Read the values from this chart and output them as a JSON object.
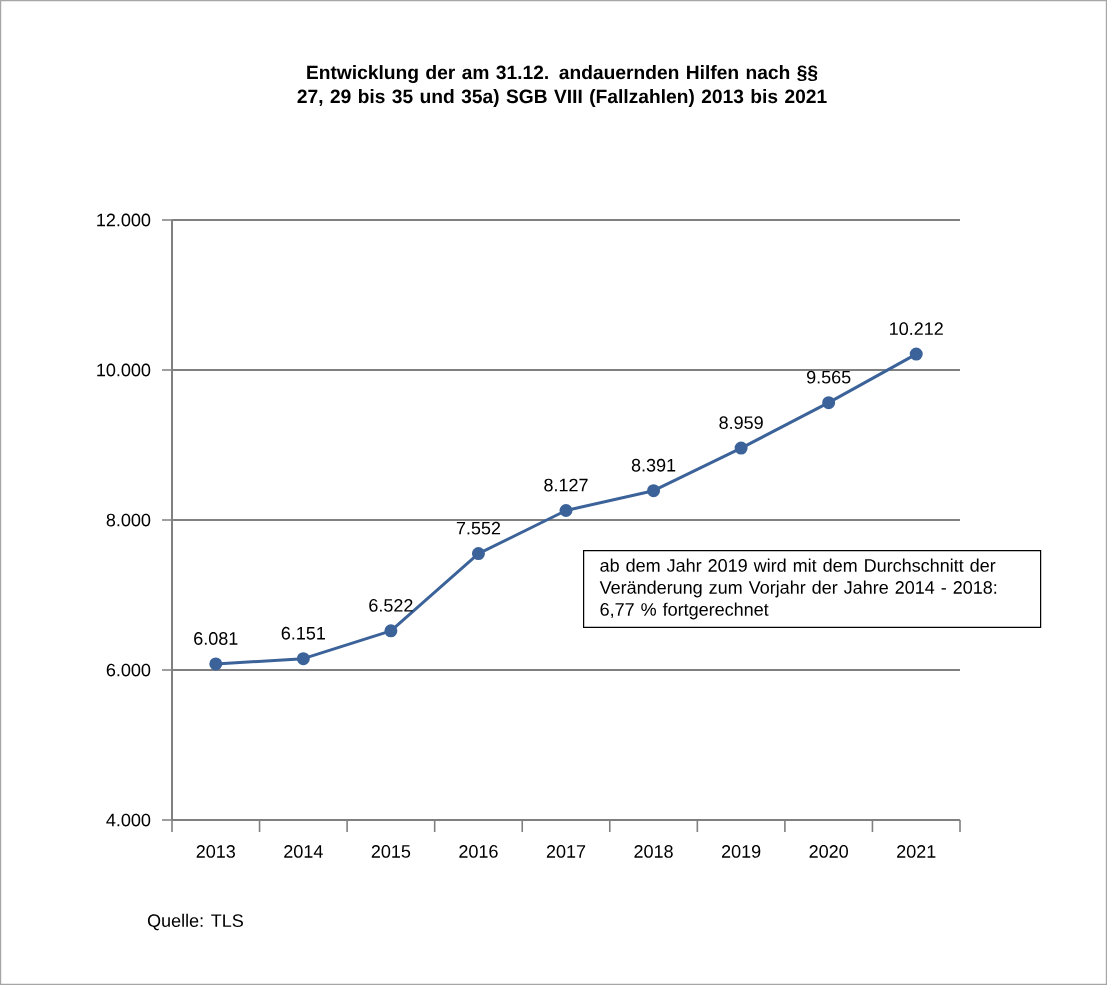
{
  "chart_data": {
    "type": "line",
    "title": "Entwicklung der am 31.12. andauernden Hilfen nach §§ 27, 29 bis 35 und 35a) SGB VIII (Fallzahlen) 2013 bis 2021",
    "categories": [
      "2013",
      "2014",
      "2015",
      "2016",
      "2017",
      "2018",
      "2019",
      "2020",
      "2021"
    ],
    "series": [
      {
        "color": "#3c6399",
        "values": [
          6081,
          6151,
          6522,
          7552,
          8127,
          8391,
          8959,
          9565,
          10212
        ],
        "value_labels": [
          "6.081",
          "6.151",
          "6.522",
          "7.552",
          "8.127",
          "8.391",
          "8.959",
          "9.565",
          "10.212"
        ]
      }
    ],
    "ylim": [
      4000,
      12000
    ],
    "yticks": [
      {
        "value": 4000,
        "label": "4.000"
      },
      {
        "value": 6000,
        "label": "6.000"
      },
      {
        "value": 8000,
        "label": "8.000"
      },
      {
        "value": 10000,
        "label": "10.000"
      },
      {
        "value": 12000,
        "label": "12.000"
      }
    ],
    "grid": "y",
    "marker": "circle",
    "line_style": "solid",
    "annotations": [
      "ab dem Jahr 2019 wird mit dem Durchschnitt der Veränderung zum Vorjahr der Jahre 2014 - 2018: 6,77 % fortgerechnet",
      "Quelle: TLS"
    ]
  }
}
